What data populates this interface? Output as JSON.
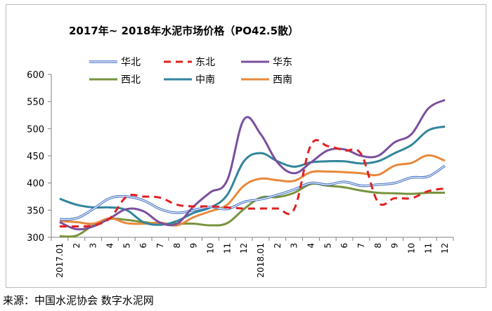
{
  "source_note": "来源：中国水泥协会 数字水泥网",
  "chart_data": {
    "type": "line",
    "title": "2017年~ 2018年水泥市场价格（PO42.5散）",
    "xlabel": "",
    "ylabel": "",
    "ylim": [
      300,
      600
    ],
    "yticks": [
      300,
      350,
      400,
      450,
      500,
      550,
      600
    ],
    "categories": [
      "2017.01",
      "2",
      "3",
      "4",
      "5",
      "6",
      "7",
      "8",
      "9",
      "10",
      "11",
      "12",
      "2018.01",
      "2",
      "3",
      "4",
      "5",
      "6",
      "7",
      "8",
      "9",
      "10",
      "11",
      "12"
    ],
    "grid": false,
    "legend_position": "top",
    "series": [
      {
        "name": "华北",
        "color": "#4472c4",
        "style": "double",
        "values": [
          333,
          335,
          352,
          372,
          375,
          368,
          352,
          345,
          350,
          356,
          352,
          365,
          370,
          378,
          388,
          400,
          397,
          402,
          395,
          397,
          400,
          410,
          412,
          432
        ]
      },
      {
        "name": "东北",
        "color": "#e02020",
        "style": "dashed",
        "values": [
          320,
          320,
          322,
          335,
          375,
          375,
          373,
          360,
          357,
          357,
          355,
          353,
          353,
          353,
          352,
          470,
          468,
          460,
          453,
          365,
          372,
          372,
          385,
          390
        ]
      },
      {
        "name": "华东",
        "color": "#7b4f9e",
        "style": "solid",
        "values": [
          328,
          315,
          320,
          335,
          352,
          348,
          327,
          325,
          357,
          383,
          405,
          517,
          490,
          438,
          418,
          438,
          460,
          462,
          450,
          450,
          475,
          490,
          537,
          553
        ]
      },
      {
        "name": "西北",
        "color": "#77933c",
        "style": "solid",
        "values": [
          302,
          303,
          322,
          334,
          332,
          328,
          325,
          325,
          325,
          322,
          326,
          352,
          373,
          374,
          382,
          398,
          395,
          392,
          386,
          382,
          381,
          380,
          382,
          382
        ]
      },
      {
        "name": "中南",
        "color": "#31859c",
        "style": "solid",
        "values": [
          371,
          360,
          355,
          355,
          350,
          328,
          323,
          330,
          345,
          355,
          378,
          440,
          455,
          440,
          430,
          438,
          440,
          440,
          436,
          440,
          455,
          470,
          497,
          504
        ]
      },
      {
        "name": "西南",
        "color": "#e8883a",
        "style": "solid",
        "values": [
          330,
          328,
          325,
          335,
          326,
          325,
          327,
          322,
          337,
          348,
          360,
          395,
          408,
          405,
          404,
          420,
          421,
          420,
          418,
          415,
          432,
          437,
          451,
          441
        ]
      }
    ]
  }
}
